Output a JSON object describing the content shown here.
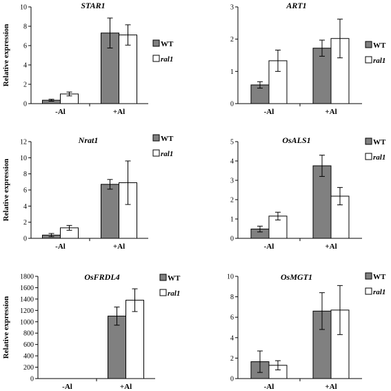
{
  "colors": {
    "WT": "#808080",
    "ral1": "#ffffff",
    "axis": "#000000"
  },
  "chart_data": [
    {
      "type": "bar",
      "title": "STAR1",
      "ylabel": "Relative expression",
      "categories": [
        "-Al",
        "+Al"
      ],
      "ylim": [
        0,
        10
      ],
      "yticks": [
        0,
        2,
        4,
        6,
        8,
        10
      ],
      "legend_position": "right",
      "series": [
        {
          "name": "WT",
          "values": [
            0.35,
            7.3
          ],
          "errors": [
            0.1,
            1.55
          ]
        },
        {
          "name": "ral1",
          "values": [
            1.0,
            7.1
          ],
          "errors": [
            0.2,
            1.05
          ]
        }
      ]
    },
    {
      "type": "bar",
      "title": "ART1",
      "ylabel": "",
      "categories": [
        "-Al",
        "+Al"
      ],
      "ylim": [
        0,
        3
      ],
      "yticks": [
        0,
        1,
        2,
        3
      ],
      "legend_position": "right",
      "series": [
        {
          "name": "WT",
          "values": [
            0.58,
            1.72
          ],
          "errors": [
            0.1,
            0.25
          ]
        },
        {
          "name": "ral1",
          "values": [
            1.33,
            2.02
          ],
          "errors": [
            0.33,
            0.6
          ]
        }
      ]
    },
    {
      "type": "bar",
      "title": "Nrat1",
      "ylabel": "Relative expression",
      "categories": [
        "-Al",
        "+Al"
      ],
      "ylim": [
        0,
        12
      ],
      "yticks": [
        0,
        2,
        4,
        6,
        8,
        10,
        12
      ],
      "legend_position": "right",
      "series": [
        {
          "name": "WT",
          "values": [
            0.4,
            6.7
          ],
          "errors": [
            0.2,
            0.6
          ]
        },
        {
          "name": "ral1",
          "values": [
            1.3,
            6.9
          ],
          "errors": [
            0.3,
            2.7
          ]
        }
      ]
    },
    {
      "type": "bar",
      "title": "OsALS1",
      "ylabel": "",
      "categories": [
        "-Al",
        "+Al"
      ],
      "ylim": [
        0,
        5
      ],
      "yticks": [
        0,
        1,
        2,
        3,
        4,
        5
      ],
      "legend_position": "right",
      "series": [
        {
          "name": "WT",
          "values": [
            0.48,
            3.75
          ],
          "errors": [
            0.15,
            0.55
          ]
        },
        {
          "name": "ral1",
          "values": [
            1.15,
            2.18
          ],
          "errors": [
            0.2,
            0.45
          ]
        }
      ]
    },
    {
      "type": "bar",
      "title": "OsFRDL4",
      "ylabel": "Relative expression",
      "categories": [
        "-Al",
        "+Al"
      ],
      "ylim": [
        0,
        1800
      ],
      "yticks": [
        0,
        200,
        400,
        600,
        800,
        1000,
        1200,
        1400,
        1600,
        1800
      ],
      "legend_position": "right",
      "series": [
        {
          "name": "WT",
          "values": [
            0,
            1100
          ],
          "errors": [
            0,
            160
          ]
        },
        {
          "name": "ral1",
          "values": [
            0,
            1380
          ],
          "errors": [
            0,
            200
          ]
        }
      ]
    },
    {
      "type": "bar",
      "title": "OsMGT1",
      "ylabel": "",
      "categories": [
        "-Al",
        "+Al"
      ],
      "ylim": [
        0,
        10
      ],
      "yticks": [
        0,
        2,
        4,
        6,
        8,
        10
      ],
      "legend_position": "right",
      "series": [
        {
          "name": "WT",
          "values": [
            1.65,
            6.6
          ],
          "errors": [
            1.05,
            1.8
          ]
        },
        {
          "name": "ral1",
          "values": [
            1.3,
            6.7
          ],
          "errors": [
            0.45,
            2.4
          ]
        }
      ]
    }
  ]
}
